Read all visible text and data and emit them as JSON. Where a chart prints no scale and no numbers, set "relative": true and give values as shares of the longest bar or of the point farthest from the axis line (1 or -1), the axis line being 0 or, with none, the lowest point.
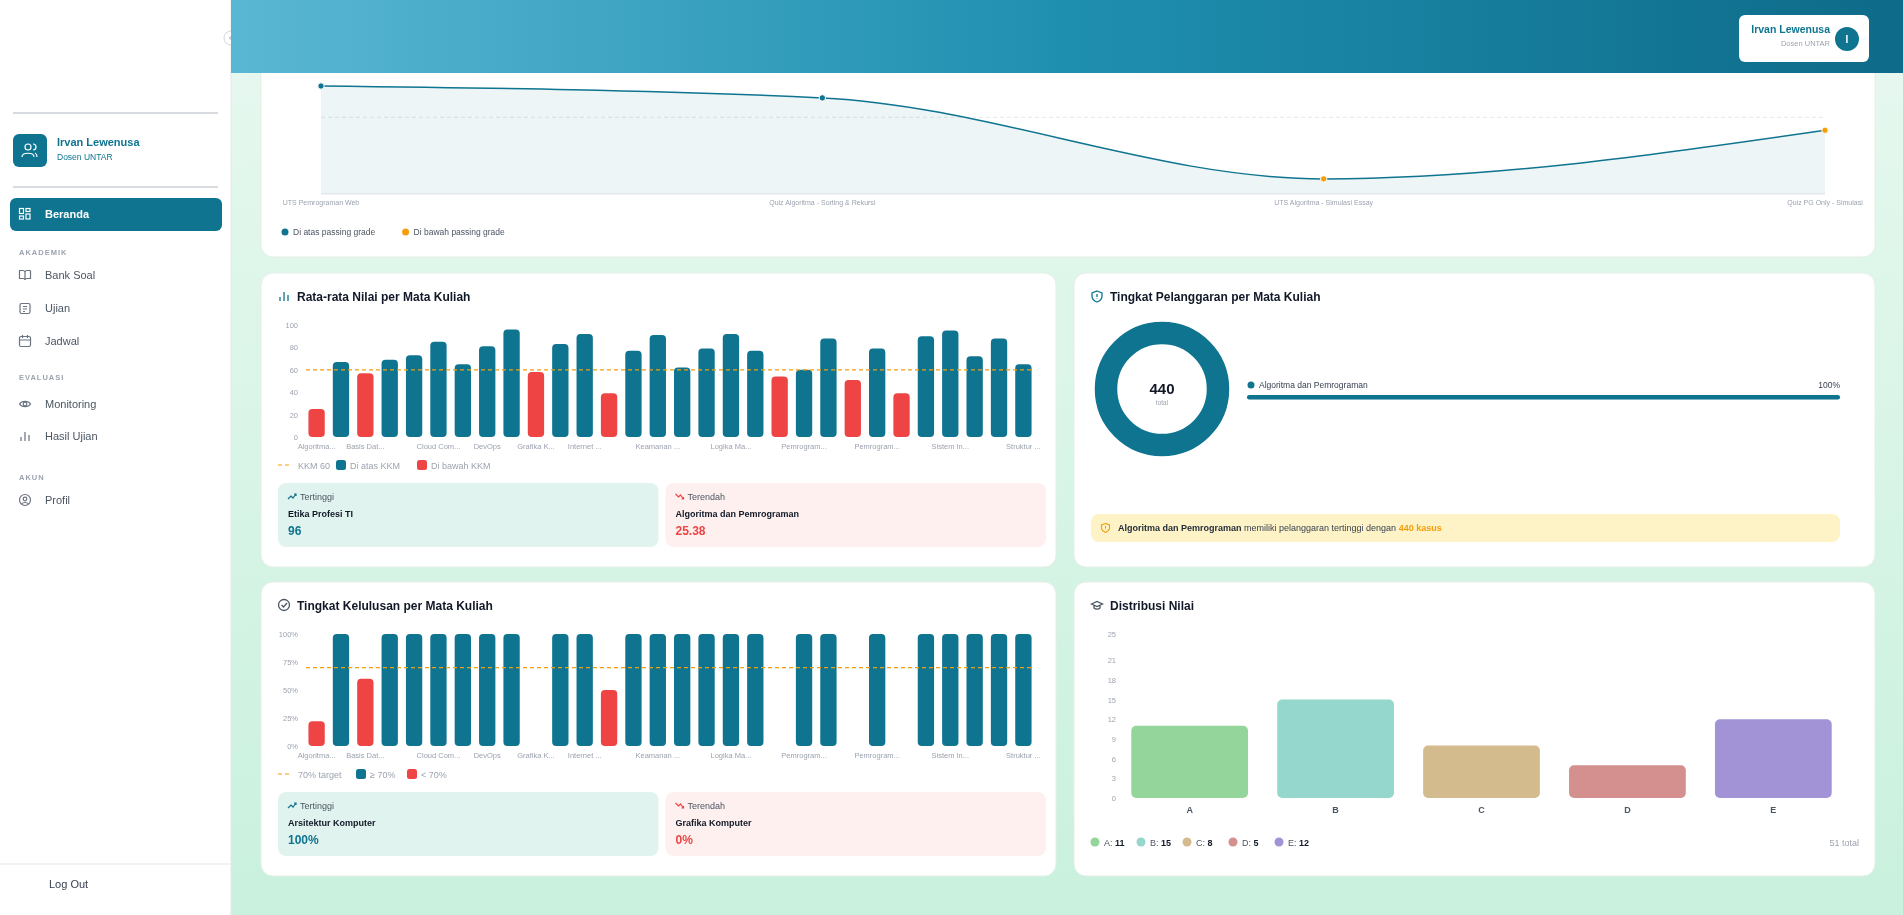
{
  "chart_data": [
    {
      "type": "other",
      "annotations": [
        "Irvan Lewenusa",
        "Dosen UNTAR",
        "Beranda",
        "AKADEMIK",
        "Bank Soal",
        "Ujian",
        "Jadwal",
        "EVALUASI",
        "Monitoring",
        "Hasil Ujian",
        "AKUN",
        "Profil",
        "Log Out"
      ]
    },
    {
      "type": "other",
      "annotations": [
        "Irvan Lewenusa",
        "Dosen UNTAR",
        "I"
      ]
    },
    {
      "type": "line",
      "relative": true,
      "categories": [
        "UTS Pemrograman Web",
        "Quiz Algoritma - Sorting & Rekursi",
        "UTS Algoritma - Simulasi Essay",
        "Quiz PG Only - Simulasi"
      ],
      "legend": "bottom left",
      "series": [
        {
          "type": "area",
          "color": "#0e7490",
          "values": [
            1,
            0.89,
            0.14,
            0.59
          ]
        },
        {
          "type": "scatter",
          "name": "Di atas passing grade",
          "color": "#0e7490",
          "values": [
            1,
            0.89,
            null,
            null
          ]
        },
        {
          "type": "scatter",
          "name": "Di bawah passing grade",
          "color": "#f59e0b",
          "values": [
            null,
            null,
            0.14,
            0.59
          ]
        }
      ],
      "ref_lines": [
        {
          "axis": "y",
          "value": 0.71,
          "color": "#e5e7eb",
          "line_style": "dashed"
        }
      ]
    },
    {
      "type": "bar",
      "title": "Rata-rata Nilai per Mata Kuliah",
      "legend": "bottom left",
      "categories": [
        "Algoritma...",
        null,
        "Basis Dat...",
        null,
        null,
        "Cloud Com...",
        null,
        "DevOps",
        null,
        "Grafika K...",
        null,
        "Internet ...",
        null,
        null,
        "Keamanan ...",
        null,
        null,
        "Logika Ma...",
        null,
        null,
        "Pemrogram...",
        null,
        null,
        "Pemrogram...",
        null,
        null,
        "Sistem In...",
        null,
        null,
        "Struktur ..."
      ],
      "series": [
        {
          "name": "Di atas KKM",
          "color": "#0e7490",
          "values": [
            null,
            67,
            null,
            69,
            73,
            85,
            65,
            81,
            96,
            null,
            83,
            92,
            null,
            77,
            91,
            62,
            79,
            92,
            77,
            null,
            60,
            88,
            null,
            79,
            null,
            90,
            95,
            72,
            88,
            65
          ]
        },
        {
          "name": "Di bawah KKM",
          "color": "#ef4444",
          "values": [
            25,
            null,
            57,
            null,
            null,
            null,
            null,
            null,
            null,
            58,
            null,
            null,
            39,
            null,
            null,
            null,
            null,
            null,
            null,
            54,
            null,
            null,
            51,
            null,
            39,
            null,
            null,
            null,
            null,
            null
          ]
        }
      ],
      "ylim": [
        0,
        100
      ],
      "yticks": [
        0,
        20,
        40,
        60,
        80,
        100
      ],
      "ref_lines": [
        {
          "axis": "y",
          "value": 60,
          "label": "KKM 60",
          "color": "#f59e0b",
          "line_style": "dashed"
        }
      ],
      "annotations": [
        "Tertinggi",
        "Etika Profesi TI",
        "96",
        "Terendah",
        "Algoritma dan Pemrograman",
        "25.38"
      ]
    },
    {
      "type": "donut",
      "title": "Tingkat Pelanggaran per Mata Kuliah",
      "legend": "right",
      "categories": [
        "Algoritma dan Pemrograman"
      ],
      "values": [
        100
      ],
      "colors": [
        "#0e7490"
      ],
      "value_labels": [
        "100%"
      ],
      "annotations": [
        "440",
        "total",
        "Algoritma dan Pemrograman",
        " memiliki pelanggaran tertinggi dengan ",
        "440 kasus"
      ]
    },
    {
      "type": "bar",
      "title": "Tingkat Kelulusan per Mata Kuliah",
      "legend": "bottom left",
      "categories": [
        "Algoritma...",
        null,
        "Basis Dat...",
        null,
        null,
        "Cloud Com...",
        null,
        "DevOps",
        null,
        "Grafika K...",
        null,
        "Internet ...",
        null,
        null,
        "Keamanan ...",
        null,
        null,
        "Logika Ma...",
        null,
        null,
        "Pemrogram...",
        null,
        null,
        "Pemrogram...",
        null,
        null,
        "Sistem In...",
        null,
        null,
        "Struktur ..."
      ],
      "series": [
        {
          "name": "≥ 70%",
          "color": "#0e7490",
          "values": [
            null,
            100,
            null,
            100,
            100,
            100,
            100,
            100,
            100,
            null,
            100,
            100,
            null,
            100,
            100,
            100,
            100,
            100,
            100,
            null,
            100,
            100,
            null,
            100,
            null,
            100,
            100,
            100,
            100,
            100
          ]
        },
        {
          "name": "< 70%",
          "color": "#ef4444",
          "values": [
            22,
            null,
            60,
            null,
            null,
            null,
            null,
            null,
            null,
            0,
            null,
            null,
            50,
            null,
            null,
            null,
            null,
            null,
            null,
            0,
            null,
            null,
            0,
            null,
            0,
            null,
            null,
            null,
            null,
            null
          ]
        }
      ],
      "ylim": [
        0,
        100
      ],
      "yticks": [
        {
          "value": 0,
          "label": "0%"
        },
        {
          "value": 25,
          "label": "25%"
        },
        {
          "value": 50,
          "label": "50%"
        },
        {
          "value": 75,
          "label": "75%"
        },
        {
          "value": 100,
          "label": "100%"
        }
      ],
      "ref_lines": [
        {
          "axis": "y",
          "value": 70,
          "label": "70% target",
          "color": "#f59e0b",
          "line_style": "dashed"
        }
      ],
      "annotations": [
        "Tertinggi",
        "Arsitektur Komputer",
        "100%",
        "Terendah",
        "Grafika Komputer",
        "0%"
      ]
    },
    {
      "type": "bar",
      "title": "Distribusi Nilai",
      "legend": "bottom left",
      "categories": [
        "A",
        "B",
        "C",
        "D",
        "E"
      ],
      "series": [
        {
          "name": "A: 11",
          "color": "#93d59a",
          "values": [
            11,
            null,
            null,
            null,
            null
          ]
        },
        {
          "name": "B: 15",
          "color": "#95d6cd",
          "values": [
            null,
            15,
            null,
            null,
            null
          ]
        },
        {
          "name": "C: 8",
          "color": "#d4bb8e",
          "values": [
            null,
            null,
            8,
            null,
            null
          ]
        },
        {
          "name": "D: 5",
          "color": "#d48f8f",
          "values": [
            null,
            null,
            null,
            5,
            null
          ]
        },
        {
          "name": "E: 12",
          "color": "#a293d6",
          "values": [
            null,
            null,
            null,
            null,
            12
          ]
        }
      ],
      "ylim": [
        0,
        25
      ],
      "yticks": [
        0,
        3,
        6,
        9,
        12,
        15,
        18,
        21,
        25
      ],
      "annotations": [
        "51 total"
      ]
    }
  ]
}
